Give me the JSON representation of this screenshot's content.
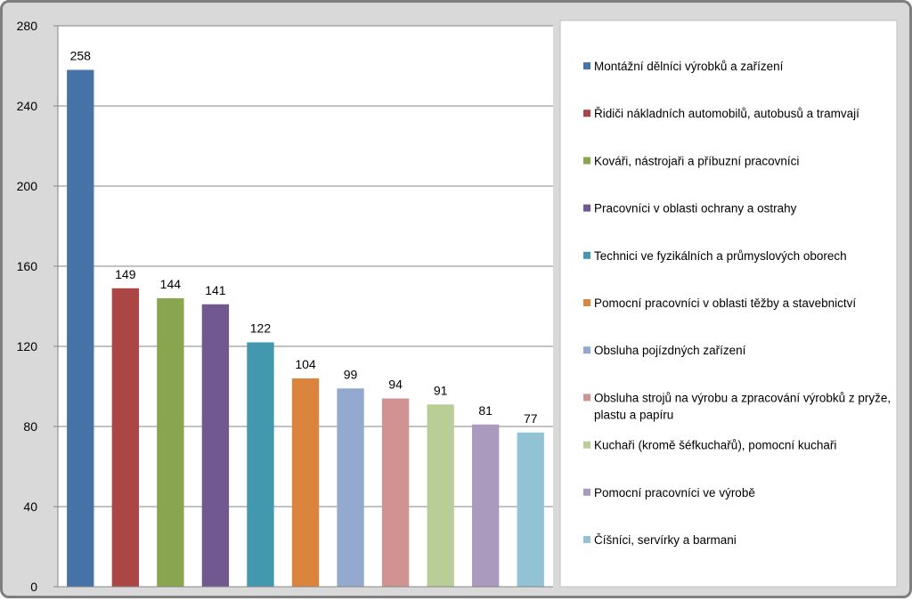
{
  "chart_data": {
    "type": "bar",
    "ylim": [
      0,
      280
    ],
    "yticks": [
      0,
      40,
      80,
      120,
      160,
      200,
      240,
      280
    ],
    "grid": true,
    "legend_position": "right",
    "categories": [
      "Montážní dělníci výrobků a zařízení",
      "Řidiči nákladních automobilů, autobusů a tramvají",
      "Kováři, nástrojaři a příbuzní pracovníci",
      "Pracovníci v oblasti ochrany a ostrahy",
      "Technici ve fyzikálních a průmyslových oborech",
      "Pomocní pracovníci v oblasti těžby a stavebnictví",
      "Obsluha pojízdných zařízení",
      "Obsluha strojů na výrobu a zpracování výrobků z pryže, plastu a papíru",
      "Kuchaři (kromě šéfkuchařů), pomocní kuchaři",
      "Pomocní pracovníci ve výrobě",
      "Číšníci, servírky a barmani"
    ],
    "values": [
      258,
      149,
      144,
      141,
      122,
      104,
      99,
      94,
      91,
      81,
      77
    ],
    "colors": [
      "#4572a7",
      "#aa4643",
      "#89a54e",
      "#71588f",
      "#4198af",
      "#db843d",
      "#93a9cf",
      "#d19392",
      "#b9cd96",
      "#a99bbd",
      "#92c3d5"
    ],
    "legend_lines": [
      [
        "Montážní dělníci výrobků a zařízení"
      ],
      [
        "Řidiči nákladních automobilů, autobusů a tramvají"
      ],
      [
        "Kováři, nástrojaři a příbuzní pracovníci"
      ],
      [
        "Pracovníci v oblasti ochrany a ostrahy"
      ],
      [
        "Technici ve fyzikálních a průmyslových oborech"
      ],
      [
        "Pomocní pracovníci v oblasti těžby a stavebnictví"
      ],
      [
        "Obsluha pojízdných zařízení"
      ],
      [
        "Obsluha strojů na výrobu a zpracování výrobků z pryže,",
        "plastu a papíru"
      ],
      [
        "Kuchaři (kromě šéfkuchařů), pomocní kuchaři"
      ],
      [
        "Pomocní pracovníci ve výrobě"
      ],
      [
        "Číšníci, servírky a barmani"
      ]
    ]
  }
}
